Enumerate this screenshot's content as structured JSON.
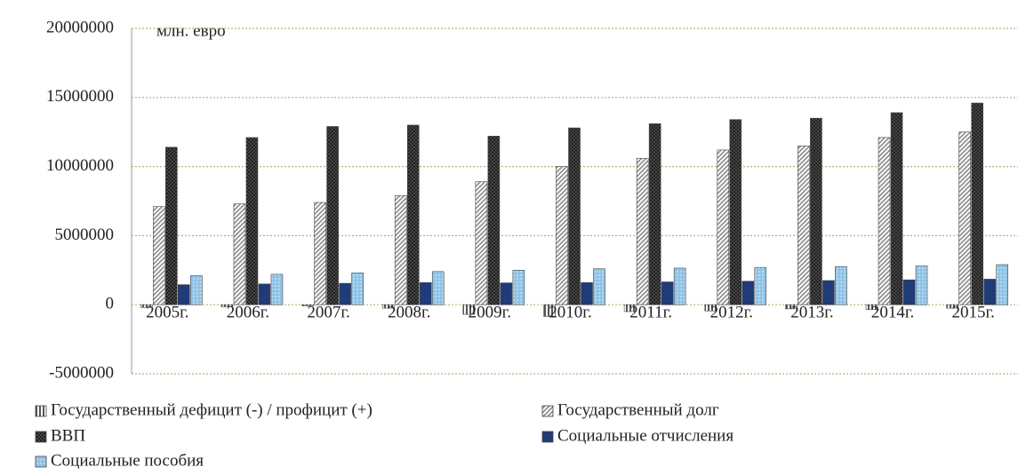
{
  "chart_data": {
    "type": "bar",
    "y_label": "млн. евро",
    "categories": [
      "2005г.",
      "2006г.",
      "2007г.",
      "2008г.",
      "2009г.",
      "2010г.",
      "2011г.",
      "2012г.",
      "2013г.",
      "2014г.",
      "2015г."
    ],
    "series": [
      {
        "name": "Государственный дефицит (-) / профицит (+)",
        "color": "#555555",
        "values": [
          -200000,
          -150000,
          -80000,
          -250000,
          -700000,
          -850000,
          -500000,
          -450000,
          -300000,
          -350000,
          -250000
        ]
      },
      {
        "name": "Государственный долг",
        "color": "#8a8a8a",
        "values": [
          7100000,
          7300000,
          7400000,
          7900000,
          8900000,
          10000000,
          10600000,
          11200000,
          11500000,
          12100000,
          12500000
        ]
      },
      {
        "name": "ВВП",
        "color": "#1a1a1a",
        "values": [
          11400000,
          12100000,
          12900000,
          13000000,
          12200000,
          12800000,
          13100000,
          13400000,
          13500000,
          13900000,
          14600000
        ]
      },
      {
        "name": "Социальные отчисления",
        "color": "#1f3c78",
        "values": [
          1450000,
          1500000,
          1550000,
          1600000,
          1580000,
          1600000,
          1650000,
          1700000,
          1750000,
          1800000,
          1850000
        ]
      },
      {
        "name": "Социальные пособия",
        "color": "#8fc3e6",
        "values": [
          2100000,
          2200000,
          2300000,
          2400000,
          2500000,
          2600000,
          2650000,
          2700000,
          2750000,
          2800000,
          2900000
        ]
      }
    ],
    "ylim": [
      -5000000,
      20000000
    ],
    "yticks": [
      -5000000,
      0,
      5000000,
      10000000,
      15000000,
      20000000
    ],
    "grid": true
  }
}
